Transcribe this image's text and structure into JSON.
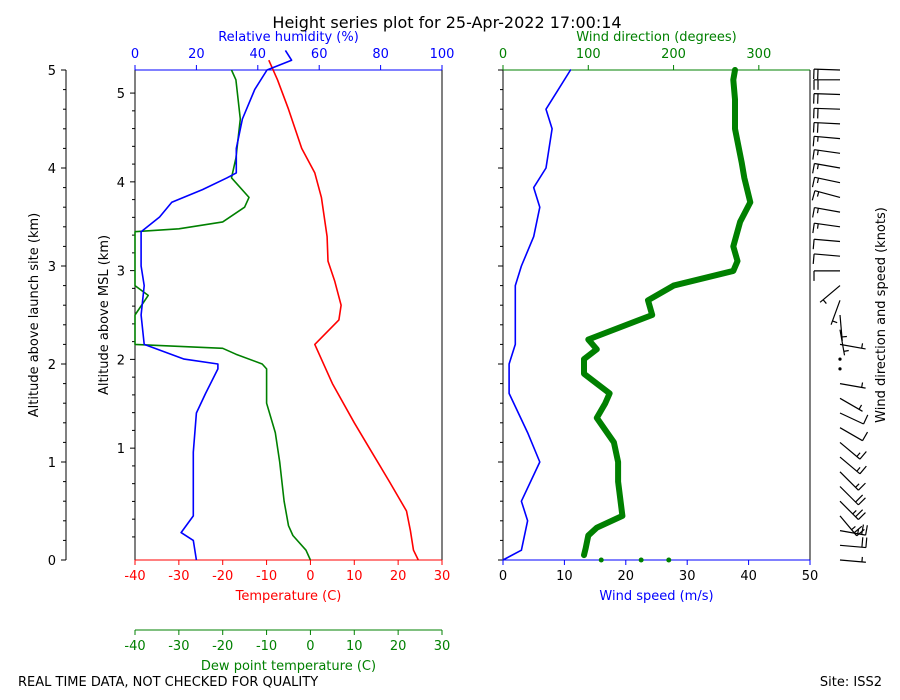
{
  "title": "Height series plot for 25-Apr-2022 17:00:14",
  "footer": {
    "left": "REAL TIME DATA, NOT CHECKED FOR QUALITY",
    "right": "Site: ISS2"
  },
  "colors": {
    "temperature": "#ff0000",
    "dewpoint": "#008000",
    "humidity": "#0000ff",
    "wind_speed": "#0000ff",
    "wind_direction": "#008000",
    "barbs": "#000000"
  },
  "chart_data": [
    {
      "type": "line",
      "panel": "thermodynamic",
      "left_axis": {
        "label": "Altitude above launch site (km)",
        "ticks": [
          0,
          1,
          2,
          3,
          4,
          5
        ],
        "range": [
          0,
          5
        ]
      },
      "inner_axis": {
        "label": "Altitude above MSL (km)",
        "ticks": [
          1,
          2,
          3,
          4,
          5
        ],
        "range": [
          -0.26,
          5.26
        ]
      },
      "x_bottom": {
        "label": "Temperature (C)",
        "ticks": [
          -40,
          -30,
          -20,
          -10,
          0,
          10,
          20,
          30
        ],
        "range": [
          -40,
          30
        ],
        "color": "#ff0000"
      },
      "x_extra": {
        "label": "Dew point temperature (C)",
        "ticks": [
          -40,
          -30,
          -20,
          -10,
          0,
          10,
          20,
          30
        ],
        "range": [
          -40,
          30
        ],
        "color": "#008000"
      },
      "x_top": {
        "label": "Relative humidity (%)",
        "ticks": [
          0,
          20,
          40,
          60,
          80,
          100
        ],
        "range": [
          0,
          100
        ],
        "color": "#0000ff"
      },
      "series": [
        {
          "name": "Temperature (C)",
          "axis": "x_bottom",
          "color": "#ff0000",
          "points": [
            [
              24.6,
              0.0
            ],
            [
              23.5,
              0.1
            ],
            [
              22.8,
              0.3
            ],
            [
              21.9,
              0.5
            ],
            [
              18,
              0.8
            ],
            [
              14,
              1.1
            ],
            [
              10,
              1.4
            ],
            [
              5,
              1.8
            ],
            [
              1,
              2.2
            ],
            [
              6.5,
              2.45
            ],
            [
              7,
              2.6
            ],
            [
              5.5,
              2.85
            ],
            [
              4,
              3.05
            ],
            [
              3.8,
              3.3
            ],
            [
              2.5,
              3.7
            ],
            [
              1,
              3.95
            ],
            [
              -2,
              4.2
            ],
            [
              -5,
              4.6
            ],
            [
              -7.5,
              4.9
            ],
            [
              -9.5,
              5.1
            ]
          ]
        },
        {
          "name": "Dew point temperature (C)",
          "axis": "x_extra",
          "color": "#008000",
          "points": [
            [
              0,
              0.0
            ],
            [
              -1,
              0.1
            ],
            [
              -4,
              0.25
            ],
            [
              -5,
              0.35
            ],
            [
              -6,
              0.6
            ],
            [
              -7,
              1.0
            ],
            [
              -8,
              1.3
            ],
            [
              -10,
              1.6
            ],
            [
              -10,
              1.95
            ],
            [
              -11,
              2.0
            ],
            [
              -17,
              2.1
            ],
            [
              -20,
              2.16
            ],
            [
              -40,
              2.2
            ],
            [
              -40,
              2.5
            ],
            [
              -37,
              2.7
            ],
            [
              -40,
              2.8
            ],
            [
              -40,
              3.35
            ],
            [
              -30,
              3.38
            ],
            [
              -20,
              3.45
            ],
            [
              -15,
              3.6
            ],
            [
              -14,
              3.7
            ],
            [
              -18,
              3.9
            ],
            [
              -17,
              4.1
            ],
            [
              -16,
              4.5
            ],
            [
              -17,
              4.9
            ],
            [
              -18,
              5.0
            ]
          ]
        },
        {
          "name": "Relative humidity (%)",
          "axis": "x_top",
          "color": "#0000ff",
          "points": [
            [
              20,
              0.0
            ],
            [
              19,
              0.2
            ],
            [
              15,
              0.28
            ],
            [
              19,
              0.45
            ],
            [
              19,
              1.1
            ],
            [
              20,
              1.5
            ],
            [
              23,
              1.7
            ],
            [
              27,
              1.95
            ],
            [
              27,
              2.0
            ],
            [
              16,
              2.05
            ],
            [
              3,
              2.2
            ],
            [
              2,
              2.5
            ],
            [
              3,
              2.8
            ],
            [
              2,
              3.0
            ],
            [
              2,
              3.35
            ],
            [
              8,
              3.5
            ],
            [
              12,
              3.65
            ],
            [
              22,
              3.78
            ],
            [
              30,
              3.9
            ],
            [
              33,
              3.95
            ],
            [
              33,
              4.2
            ],
            [
              35,
              4.5
            ],
            [
              39,
              4.8
            ],
            [
              43,
              5.0
            ],
            [
              51,
              5.1
            ],
            [
              49,
              5.2
            ]
          ]
        }
      ]
    },
    {
      "type": "line",
      "panel": "wind",
      "x_bottom": {
        "label": "Wind speed (m/s)",
        "ticks": [
          0,
          10,
          20,
          30,
          40,
          50
        ],
        "range": [
          0,
          50
        ],
        "color": "#0000ff"
      },
      "x_top": {
        "label": "Wind direction (degrees)",
        "ticks": [
          0,
          100,
          200,
          300
        ],
        "range": [
          0,
          360
        ],
        "color": "#008000"
      },
      "y_range": [
        0,
        5
      ],
      "series": [
        {
          "name": "Wind speed (m/s)",
          "axis": "x_bottom",
          "color": "#0000ff",
          "points": [
            [
              0,
              0.0
            ],
            [
              3,
              0.1
            ],
            [
              4,
              0.4
            ],
            [
              3,
              0.6
            ],
            [
              6,
              1.0
            ],
            [
              4,
              1.3
            ],
            [
              1,
              1.7
            ],
            [
              1,
              2.0
            ],
            [
              2,
              2.2
            ],
            [
              2,
              2.5
            ],
            [
              2,
              2.8
            ],
            [
              3,
              3.0
            ],
            [
              5,
              3.3
            ],
            [
              6,
              3.6
            ],
            [
              5,
              3.8
            ],
            [
              7,
              4.0
            ],
            [
              8,
              4.4
            ],
            [
              7,
              4.6
            ],
            [
              9,
              4.8
            ],
            [
              11,
              5.0
            ]
          ]
        },
        {
          "name": "Wind direction (degrees)",
          "axis": "x_top",
          "color": "#008000",
          "points": [
            [
              95,
              0.05
            ],
            [
              97,
              0.12
            ],
            [
              100,
              0.25
            ],
            [
              110,
              0.33
            ],
            [
              140,
              0.45
            ],
            [
              135,
              0.8
            ],
            [
              135,
              1.0
            ],
            [
              130,
              1.2
            ],
            [
              110,
              1.45
            ],
            [
              120,
              1.6
            ],
            [
              125,
              1.7
            ],
            [
              95,
              1.9
            ],
            [
              95,
              2.05
            ],
            [
              110,
              2.15
            ],
            [
              100,
              2.25
            ],
            [
              175,
              2.5
            ],
            [
              170,
              2.65
            ],
            [
              200,
              2.8
            ],
            [
              270,
              2.95
            ],
            [
              275,
              3.05
            ],
            [
              270,
              3.2
            ],
            [
              278,
              3.45
            ],
            [
              290,
              3.65
            ],
            [
              283,
              3.9
            ],
            [
              280,
              4.05
            ],
            [
              272,
              4.4
            ],
            [
              272,
              4.7
            ],
            [
              270,
              4.9
            ],
            [
              272,
              5.0
            ]
          ]
        }
      ],
      "outliers": [
        {
          "speed": 16,
          "height": 0.0
        },
        {
          "speed": 22.5,
          "height": 0.0
        },
        {
          "speed": 27,
          "height": 0.0
        }
      ]
    },
    {
      "type": "scatter",
      "panel": "wind-barbs",
      "ylabel": "Wind direction and speed (knots)",
      "barbs": [
        {
          "height": 0.0,
          "direction": 95,
          "speed": 5
        },
        {
          "height": 0.15,
          "direction": 95,
          "speed": 20
        },
        {
          "height": 0.3,
          "direction": 100,
          "speed": 25
        },
        {
          "height": 0.45,
          "direction": 140,
          "speed": 25
        },
        {
          "height": 0.6,
          "direction": 135,
          "speed": 25
        },
        {
          "height": 0.75,
          "direction": 135,
          "speed": 20
        },
        {
          "height": 0.9,
          "direction": 135,
          "speed": 15
        },
        {
          "height": 1.05,
          "direction": 130,
          "speed": 15
        },
        {
          "height": 1.2,
          "direction": 130,
          "speed": 15
        },
        {
          "height": 1.35,
          "direction": 120,
          "speed": 10
        },
        {
          "height": 1.5,
          "direction": 115,
          "speed": 10
        },
        {
          "height": 1.65,
          "direction": 120,
          "speed": 5
        },
        {
          "height": 1.8,
          "direction": 100,
          "speed": 5
        },
        {
          "height": 1.95,
          "direction": 95,
          "speed": 0
        },
        {
          "height": 2.05,
          "direction": 100,
          "speed": 0
        },
        {
          "height": 2.2,
          "direction": 100,
          "speed": 5
        },
        {
          "height": 2.35,
          "direction": 170,
          "speed": 5
        },
        {
          "height": 2.5,
          "direction": 175,
          "speed": 5
        },
        {
          "height": 2.65,
          "direction": 200,
          "speed": 5
        },
        {
          "height": 2.8,
          "direction": 230,
          "speed": 5
        },
        {
          "height": 2.95,
          "direction": 270,
          "speed": 10
        },
        {
          "height": 3.1,
          "direction": 275,
          "speed": 10
        },
        {
          "height": 3.25,
          "direction": 275,
          "speed": 10
        },
        {
          "height": 3.4,
          "direction": 278,
          "speed": 15
        },
        {
          "height": 3.55,
          "direction": 280,
          "speed": 15
        },
        {
          "height": 3.7,
          "direction": 285,
          "speed": 15
        },
        {
          "height": 3.85,
          "direction": 282,
          "speed": 15
        },
        {
          "height": 4.0,
          "direction": 280,
          "speed": 15
        },
        {
          "height": 4.15,
          "direction": 278,
          "speed": 15
        },
        {
          "height": 4.3,
          "direction": 275,
          "speed": 15
        },
        {
          "height": 4.45,
          "direction": 273,
          "speed": 20
        },
        {
          "height": 4.6,
          "direction": 272,
          "speed": 20
        },
        {
          "height": 4.75,
          "direction": 272,
          "speed": 20
        },
        {
          "height": 4.9,
          "direction": 270,
          "speed": 20
        },
        {
          "height": 5.0,
          "direction": 272,
          "speed": 20
        }
      ]
    }
  ]
}
